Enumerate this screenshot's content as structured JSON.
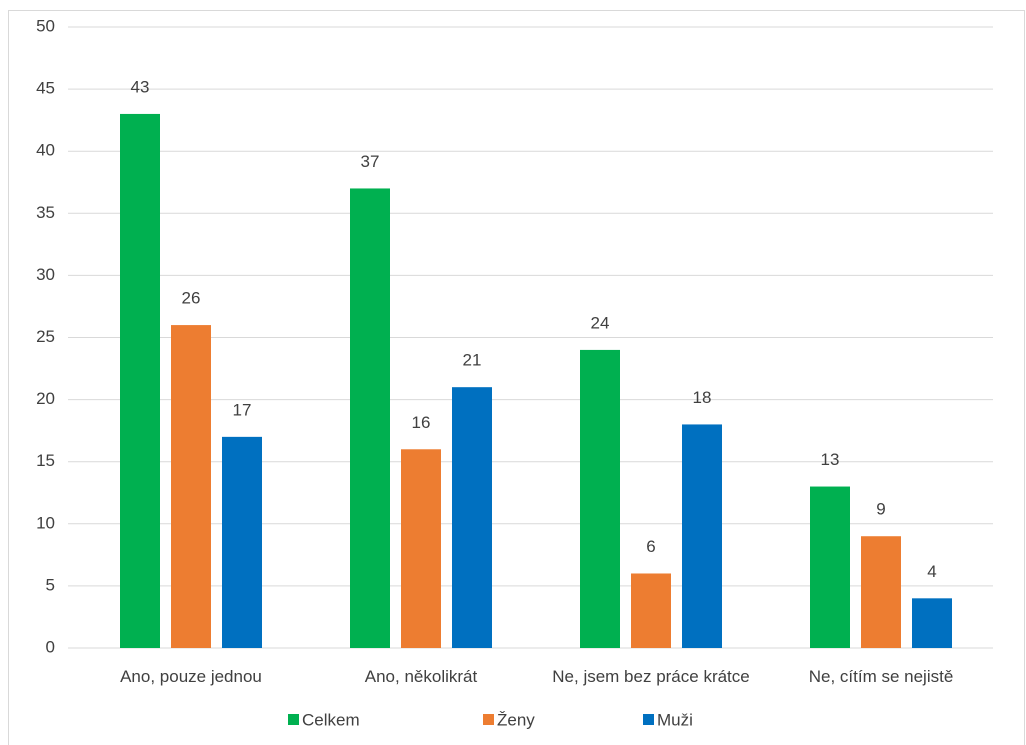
{
  "chart_data": {
    "type": "bar",
    "categories": [
      "Ano, pouze jednou",
      "Ano, několikrát",
      "Ne, jsem bez práce krátce",
      "Ne, cítím se nejistě"
    ],
    "series": [
      {
        "name": "Celkem",
        "color": "#00b050",
        "values": [
          43,
          37,
          24,
          13
        ]
      },
      {
        "name": "Ženy",
        "color": "#ed7d31",
        "values": [
          26,
          16,
          6,
          9
        ]
      },
      {
        "name": "Muži",
        "color": "#0070c0",
        "values": [
          17,
          21,
          18,
          4
        ]
      }
    ],
    "ylim": [
      0,
      50
    ],
    "yticks": [
      0,
      5,
      10,
      15,
      20,
      25,
      30,
      35,
      40,
      45,
      50
    ],
    "grid": true,
    "legend": "bottom"
  }
}
